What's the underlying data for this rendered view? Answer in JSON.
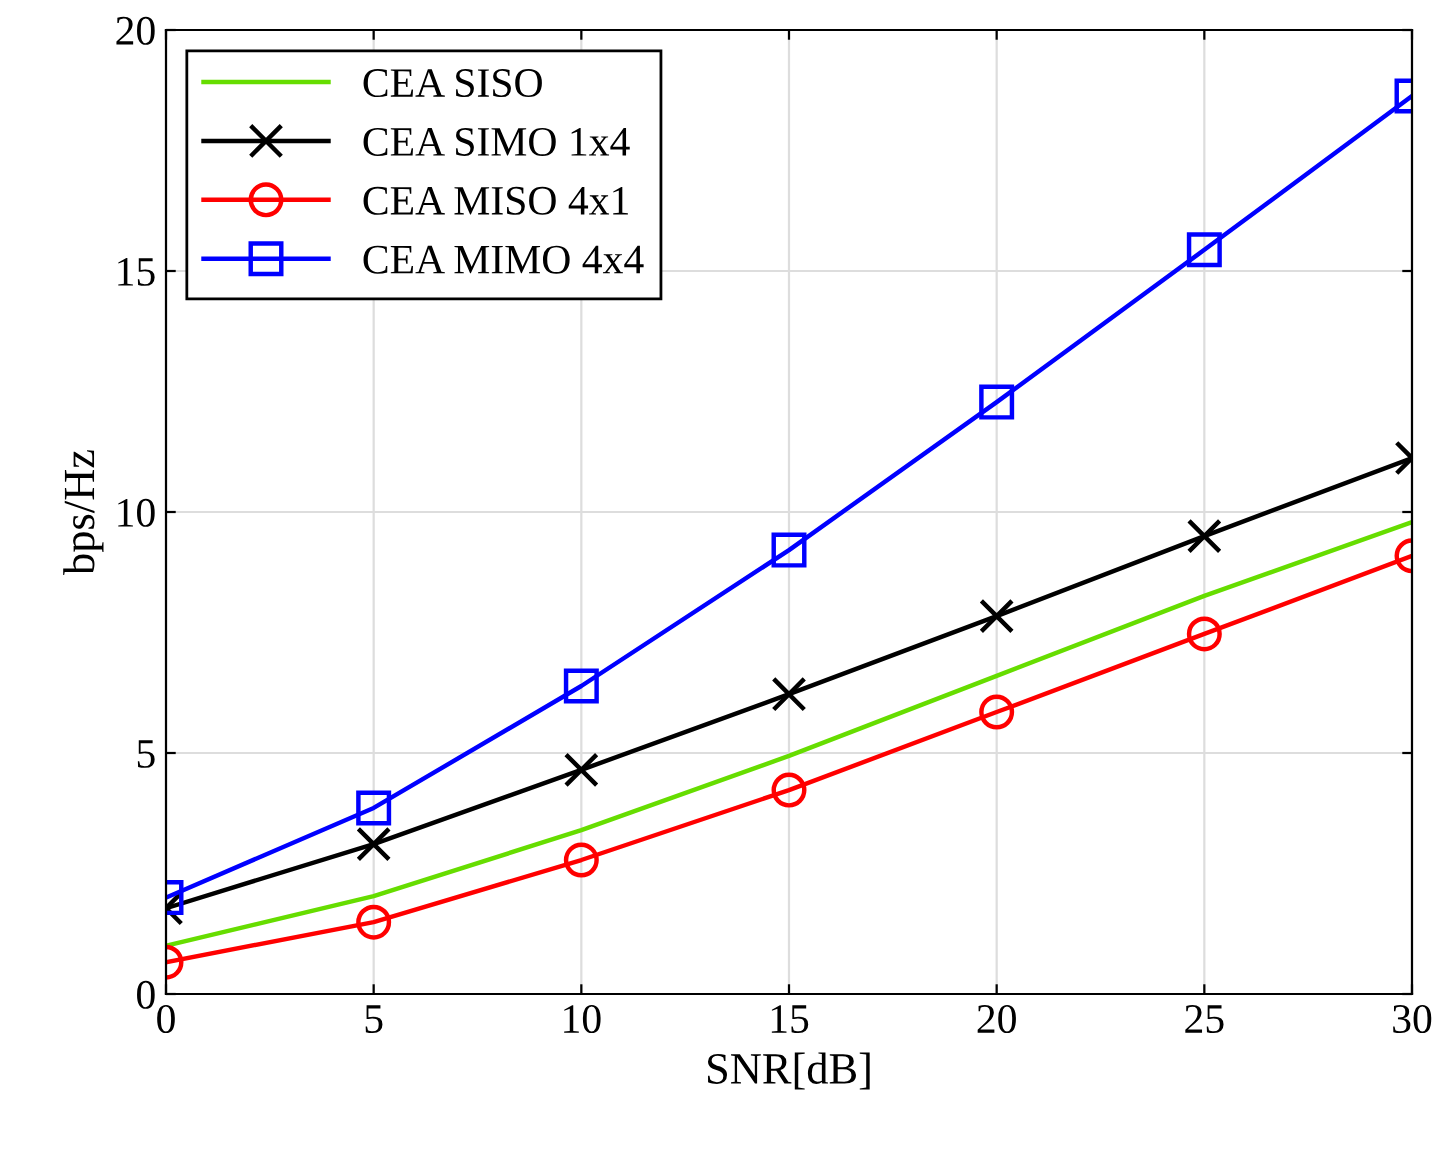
{
  "chart_data": {
    "type": "line",
    "xlabel": "SNR[dB]",
    "ylabel": "bps/Hz",
    "x": [
      0,
      5,
      10,
      15,
      20,
      25,
      30
    ],
    "series": [
      {
        "name": "CEA SISO",
        "color": "#66dd00",
        "marker": "none",
        "values": [
          1.0,
          2.03,
          3.4,
          4.94,
          6.6,
          8.26,
          9.79
        ]
      },
      {
        "name": "CEA SIMO 1x4",
        "color": "#000000",
        "marker": "cross",
        "values": [
          1.78,
          3.11,
          4.65,
          6.22,
          7.84,
          9.5,
          11.12
        ]
      },
      {
        "name": "CEA MISO 4x1",
        "color": "#ff0000",
        "marker": "circle",
        "values": [
          0.66,
          1.49,
          2.78,
          4.23,
          5.85,
          7.47,
          9.09
        ]
      },
      {
        "name": "CEA MIMO 4x4",
        "color": "#0000ff",
        "marker": "square",
        "values": [
          2.0,
          3.86,
          6.39,
          9.21,
          12.28,
          15.44,
          18.63
        ]
      }
    ],
    "xlim": [
      0,
      30
    ],
    "xticks": [
      0,
      5,
      10,
      15,
      20,
      25,
      30
    ],
    "ylim": [
      0,
      20
    ],
    "yticks": [
      0,
      5,
      10,
      15,
      20
    ],
    "grid": true,
    "legend": "top left",
    "line_style": "solid"
  }
}
